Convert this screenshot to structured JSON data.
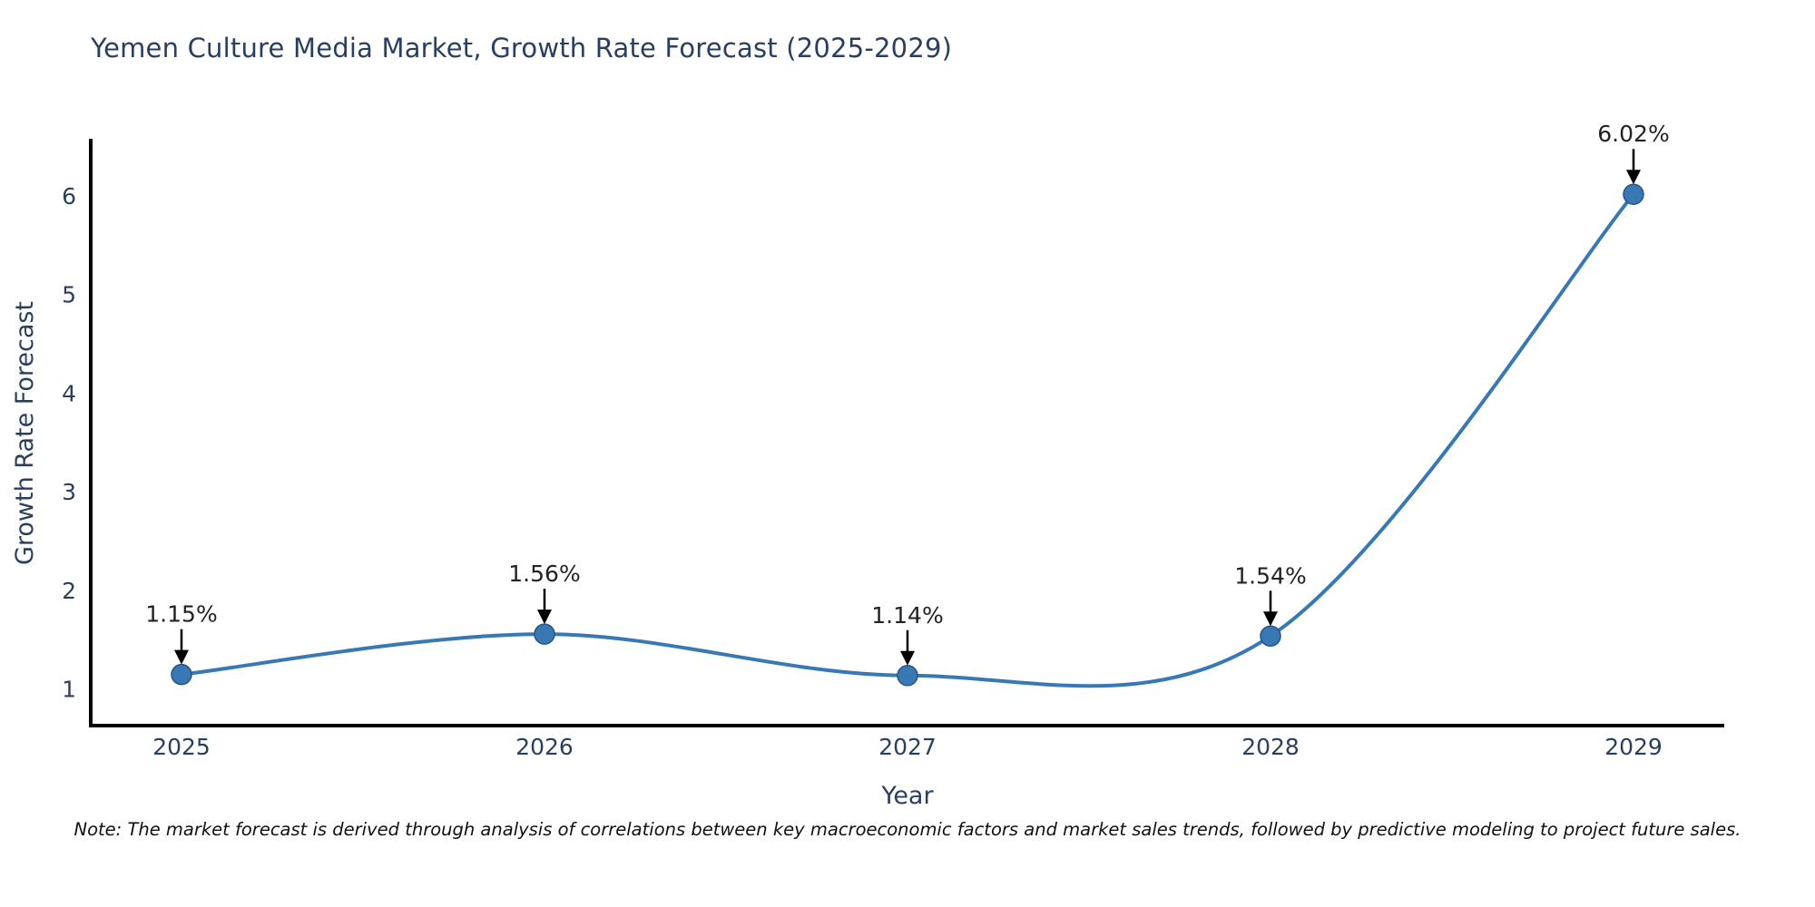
{
  "chart_data": {
    "type": "line",
    "title": "Yemen Culture Media Market, Growth Rate Forecast (2025-2029)",
    "xlabel": "Year",
    "ylabel": "Growth Rate Forecast",
    "categories": [
      2025,
      2026,
      2027,
      2028,
      2029
    ],
    "values": [
      1.15,
      1.56,
      1.14,
      1.54,
      6.02
    ],
    "point_labels": [
      "1.15%",
      "1.56%",
      "1.14%",
      "1.54%",
      "6.02%"
    ],
    "yticks": [
      1,
      2,
      3,
      4,
      5,
      6
    ],
    "xlim": [
      2024.75,
      2029.25
    ],
    "ylim": [
      0.632,
      6.565
    ],
    "line_shape": "spline",
    "grid": false,
    "legend_position": "none",
    "colors": {
      "line": "#3878b4",
      "marker_fill": "#3878b4",
      "marker_edge": "#28567f",
      "arrow": "#000000",
      "title_text": "#2a3f5f",
      "axis_text": "#2a3f5f",
      "annotation_text": "#222222",
      "axis_line": "#000000",
      "background": "#ffffff"
    }
  },
  "note": {
    "text": "Note: The market forecast is derived through analysis of correlations between key macroeconomic factors and market sales trends, followed by predictive modeling to project future sales."
  }
}
